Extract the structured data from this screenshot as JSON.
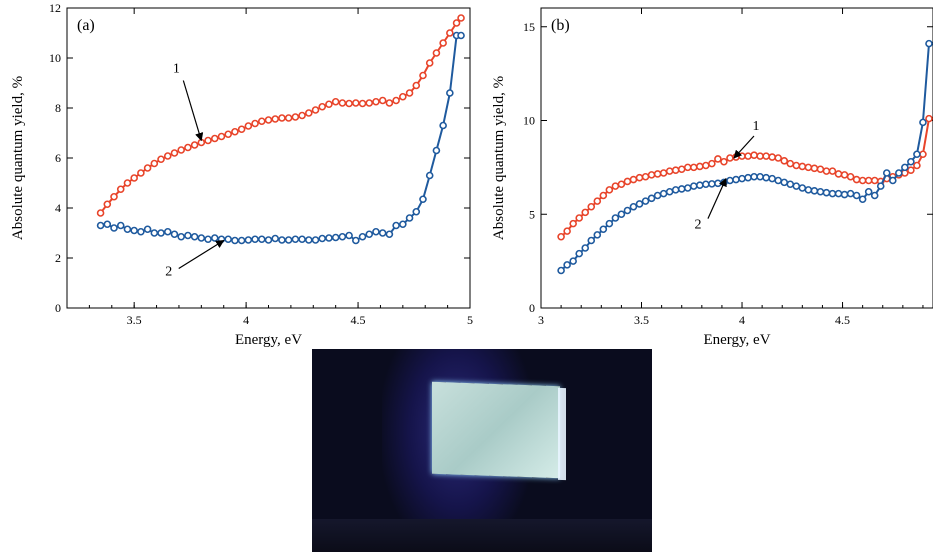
{
  "colors": {
    "series1": "#e8442a",
    "series2": "#1f5a9e",
    "axis": "#000000"
  },
  "chart_data": [
    {
      "type": "line",
      "panel_label": "(a)",
      "xlabel": "Energy, eV",
      "ylabel": "Absolute quantum yield, %",
      "xlim": [
        3.2,
        5.0
      ],
      "ylim": [
        0,
        12
      ],
      "xticks": [
        "3.5",
        "4",
        "4.5",
        "5"
      ],
      "xtick_values": [
        3.5,
        4,
        4.5,
        5
      ],
      "yticks": [
        "0",
        "2",
        "4",
        "6",
        "8",
        "10",
        "12"
      ],
      "ytick_values": [
        0,
        2,
        4,
        6,
        8,
        10,
        12
      ],
      "annotations": [
        {
          "text": "1",
          "target_series": 0,
          "x": 3.8,
          "y": 6.7
        },
        {
          "text": "2",
          "target_series": 1,
          "x": 3.9,
          "y": 2.7
        }
      ],
      "series": [
        {
          "label": "1",
          "x": [
            3.35,
            3.38,
            3.41,
            3.44,
            3.47,
            3.5,
            3.53,
            3.56,
            3.59,
            3.62,
            3.65,
            3.68,
            3.71,
            3.74,
            3.77,
            3.8,
            3.83,
            3.86,
            3.89,
            3.92,
            3.95,
            3.98,
            4.01,
            4.04,
            4.07,
            4.1,
            4.13,
            4.16,
            4.19,
            4.22,
            4.25,
            4.28,
            4.31,
            4.34,
            4.37,
            4.4,
            4.43,
            4.46,
            4.49,
            4.52,
            4.55,
            4.58,
            4.61,
            4.64,
            4.67,
            4.7,
            4.73,
            4.76,
            4.79,
            4.82,
            4.85,
            4.88,
            4.91,
            4.94,
            4.96
          ],
          "y": [
            3.8,
            4.15,
            4.45,
            4.75,
            5.0,
            5.2,
            5.4,
            5.6,
            5.78,
            5.95,
            6.08,
            6.2,
            6.32,
            6.42,
            6.52,
            6.62,
            6.7,
            6.78,
            6.86,
            6.95,
            7.05,
            7.15,
            7.28,
            7.38,
            7.47,
            7.52,
            7.56,
            7.6,
            7.6,
            7.64,
            7.7,
            7.8,
            7.92,
            8.05,
            8.15,
            8.25,
            8.2,
            8.18,
            8.2,
            8.18,
            8.2,
            8.25,
            8.3,
            8.2,
            8.3,
            8.45,
            8.6,
            8.9,
            9.3,
            9.8,
            10.2,
            10.6,
            11.0,
            11.4,
            11.6
          ]
        },
        {
          "label": "2",
          "x": [
            3.35,
            3.38,
            3.41,
            3.44,
            3.47,
            3.5,
            3.53,
            3.56,
            3.59,
            3.62,
            3.65,
            3.68,
            3.71,
            3.74,
            3.77,
            3.8,
            3.83,
            3.86,
            3.89,
            3.92,
            3.95,
            3.98,
            4.01,
            4.04,
            4.07,
            4.1,
            4.13,
            4.16,
            4.19,
            4.22,
            4.25,
            4.28,
            4.31,
            4.34,
            4.37,
            4.4,
            4.43,
            4.46,
            4.49,
            4.52,
            4.55,
            4.58,
            4.61,
            4.64,
            4.67,
            4.7,
            4.73,
            4.76,
            4.79,
            4.82,
            4.85,
            4.88,
            4.91,
            4.94,
            4.96
          ],
          "y": [
            3.3,
            3.35,
            3.2,
            3.3,
            3.15,
            3.1,
            3.05,
            3.15,
            3.0,
            3.0,
            3.05,
            2.95,
            2.85,
            2.9,
            2.85,
            2.8,
            2.75,
            2.8,
            2.75,
            2.75,
            2.7,
            2.7,
            2.72,
            2.75,
            2.75,
            2.72,
            2.78,
            2.72,
            2.72,
            2.75,
            2.75,
            2.72,
            2.72,
            2.78,
            2.8,
            2.82,
            2.85,
            2.9,
            2.7,
            2.85,
            2.95,
            3.05,
            3.0,
            2.95,
            3.3,
            3.35,
            3.6,
            3.85,
            4.35,
            5.3,
            6.3,
            7.3,
            8.6,
            10.9,
            10.9
          ]
        }
      ]
    },
    {
      "type": "line",
      "panel_label": "(b)",
      "xlabel": "Energy, eV",
      "ylabel": "Absolute quantum yield, %",
      "xlim": [
        3.0,
        4.95
      ],
      "ylim": [
        0,
        16
      ],
      "xticks": [
        "3",
        "3.5",
        "4",
        "4.5"
      ],
      "xtick_values": [
        3,
        3.5,
        4,
        4.5
      ],
      "yticks": [
        "0",
        "5",
        "10",
        "15"
      ],
      "ytick_values": [
        0,
        5,
        10,
        15
      ],
      "annotations": [
        {
          "text": "1",
          "target_series": 0,
          "x": 3.96,
          "y": 8.0
        },
        {
          "text": "2",
          "target_series": 1,
          "x": 3.92,
          "y": 6.9
        }
      ],
      "series": [
        {
          "label": "1",
          "x": [
            3.1,
            3.13,
            3.16,
            3.19,
            3.22,
            3.25,
            3.28,
            3.31,
            3.34,
            3.37,
            3.4,
            3.43,
            3.46,
            3.49,
            3.52,
            3.55,
            3.58,
            3.61,
            3.64,
            3.67,
            3.7,
            3.73,
            3.76,
            3.79,
            3.82,
            3.85,
            3.88,
            3.91,
            3.94,
            3.97,
            4.0,
            4.03,
            4.06,
            4.09,
            4.12,
            4.15,
            4.18,
            4.21,
            4.24,
            4.27,
            4.3,
            4.33,
            4.36,
            4.39,
            4.42,
            4.45,
            4.48,
            4.51,
            4.54,
            4.57,
            4.6,
            4.63,
            4.66,
            4.69,
            4.72,
            4.75,
            4.78,
            4.81,
            4.84,
            4.87,
            4.9,
            4.93
          ],
          "y": [
            3.8,
            4.1,
            4.5,
            4.8,
            5.1,
            5.4,
            5.7,
            6.0,
            6.3,
            6.5,
            6.6,
            6.75,
            6.85,
            6.95,
            7.0,
            7.1,
            7.15,
            7.2,
            7.3,
            7.35,
            7.4,
            7.5,
            7.5,
            7.55,
            7.6,
            7.7,
            7.95,
            7.8,
            8.0,
            8.05,
            8.1,
            8.1,
            8.15,
            8.1,
            8.1,
            8.05,
            8.0,
            7.85,
            7.7,
            7.6,
            7.55,
            7.5,
            7.45,
            7.4,
            7.3,
            7.3,
            7.15,
            7.1,
            7.0,
            6.85,
            6.8,
            6.8,
            6.8,
            6.75,
            6.9,
            7.0,
            7.1,
            7.2,
            7.35,
            7.6,
            8.2,
            10.1
          ]
        },
        {
          "label": "2",
          "x": [
            3.1,
            3.13,
            3.16,
            3.19,
            3.22,
            3.25,
            3.28,
            3.31,
            3.34,
            3.37,
            3.4,
            3.43,
            3.46,
            3.49,
            3.52,
            3.55,
            3.58,
            3.61,
            3.64,
            3.67,
            3.7,
            3.73,
            3.76,
            3.79,
            3.82,
            3.85,
            3.88,
            3.91,
            3.94,
            3.97,
            4.0,
            4.03,
            4.06,
            4.09,
            4.12,
            4.15,
            4.18,
            4.21,
            4.24,
            4.27,
            4.3,
            4.33,
            4.36,
            4.39,
            4.42,
            4.45,
            4.48,
            4.51,
            4.54,
            4.57,
            4.6,
            4.63,
            4.66,
            4.69,
            4.72,
            4.75,
            4.78,
            4.81,
            4.84,
            4.87,
            4.9,
            4.93
          ],
          "y": [
            2.0,
            2.3,
            2.5,
            2.9,
            3.2,
            3.6,
            3.9,
            4.2,
            4.5,
            4.8,
            5.0,
            5.2,
            5.4,
            5.55,
            5.7,
            5.85,
            6.0,
            6.1,
            6.2,
            6.3,
            6.35,
            6.4,
            6.5,
            6.55,
            6.6,
            6.62,
            6.65,
            6.7,
            6.8,
            6.85,
            6.9,
            6.95,
            7.0,
            7.0,
            6.95,
            6.9,
            6.8,
            6.7,
            6.6,
            6.5,
            6.4,
            6.3,
            6.25,
            6.2,
            6.15,
            6.1,
            6.1,
            6.05,
            6.1,
            6.0,
            5.8,
            6.2,
            6.0,
            6.5,
            7.2,
            6.8,
            7.2,
            7.5,
            7.8,
            8.2,
            9.9,
            14.1
          ]
        }
      ]
    }
  ]
}
